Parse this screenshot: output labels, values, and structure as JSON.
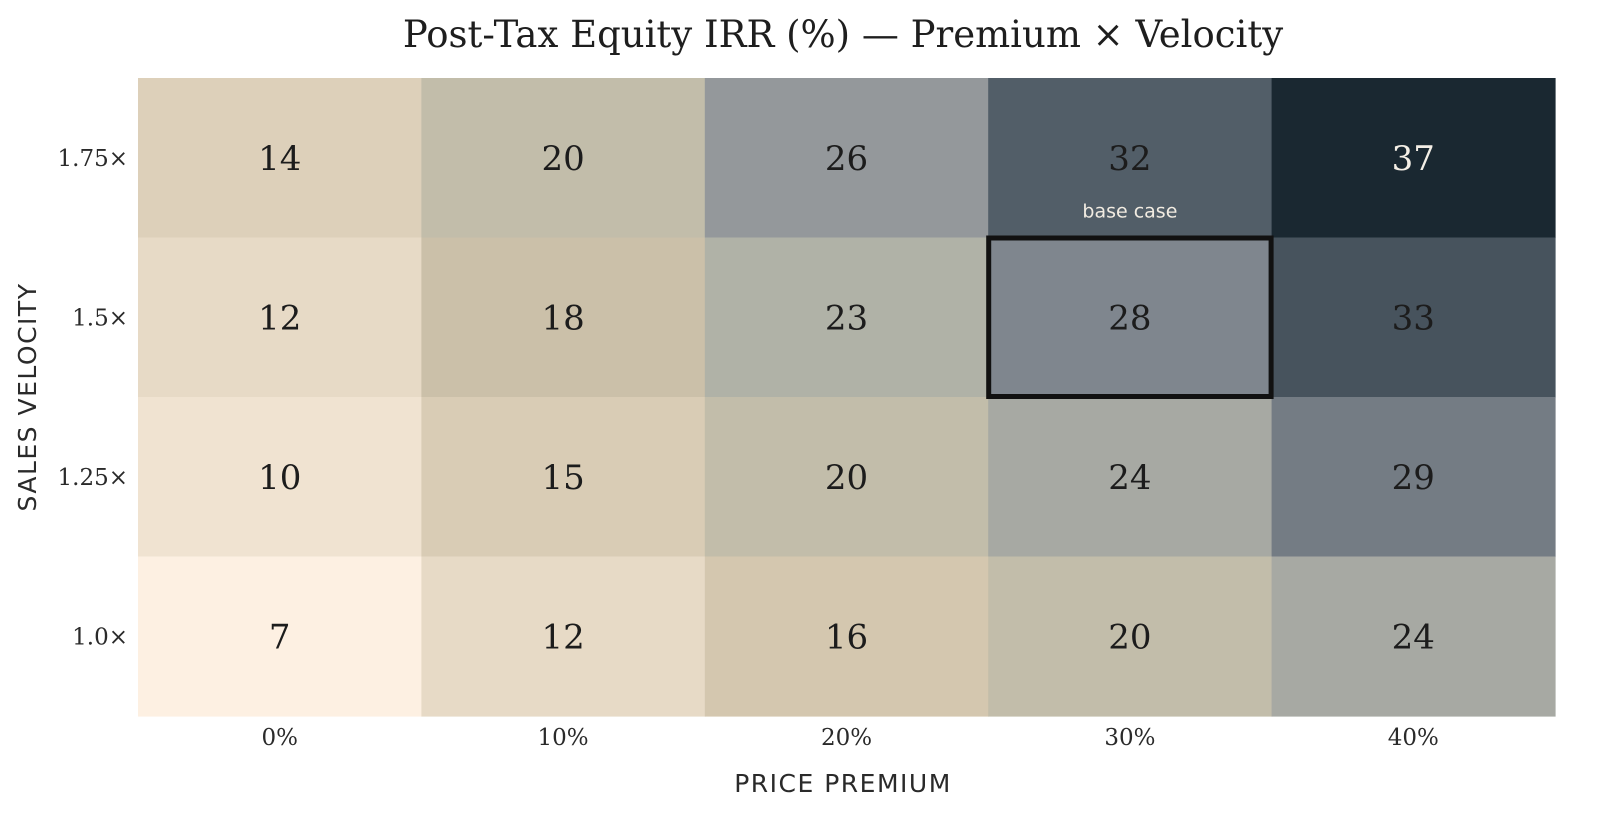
{
  "chart_data": {
    "type": "heatmap",
    "title": "Post-Tax Equity IRR (%) — Premium × Velocity",
    "xlabel": "PRICE PREMIUM",
    "ylabel": "SALES VELOCITY",
    "x_categories": [
      "0%",
      "10%",
      "20%",
      "30%",
      "40%"
    ],
    "y_categories": [
      "1.75×",
      "1.5×",
      "1.25×",
      "1.0×"
    ],
    "values": [
      [
        14,
        20,
        26,
        32,
        37
      ],
      [
        12,
        18,
        23,
        28,
        33
      ],
      [
        10,
        15,
        20,
        24,
        29
      ],
      [
        7,
        12,
        16,
        20,
        24
      ]
    ],
    "color_range": [
      7,
      37
    ],
    "colormap": [
      "#fdf0e2",
      "#e7dac6",
      "#cfc2a9",
      "#babaab",
      "#8a9097",
      "#525e68",
      "#1a2831"
    ],
    "highlight": {
      "row": 1,
      "col": 3,
      "label": "base case"
    },
    "grid": false,
    "legend": false
  }
}
